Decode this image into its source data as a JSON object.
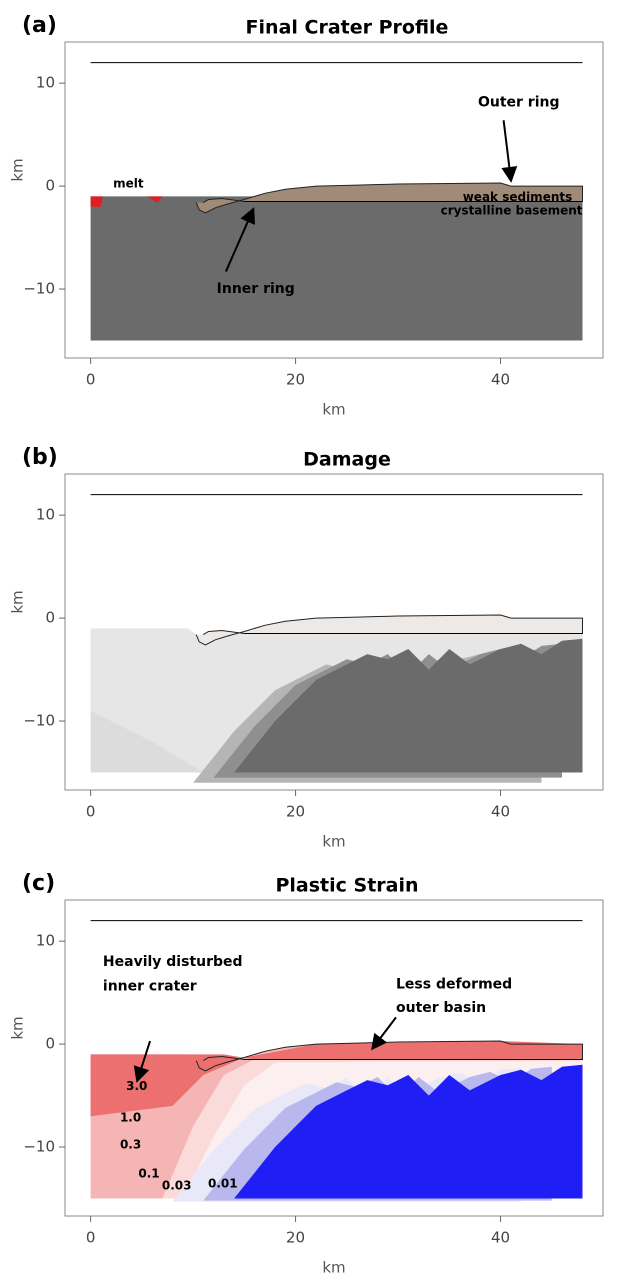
{
  "chart_data": [
    {
      "type": "field",
      "panel_label": "(a)",
      "title": "Final Crater Profile",
      "xlabel": "km",
      "ylabel": "km",
      "xlim": [
        -2.5,
        50
      ],
      "ylim": [
        -16.7,
        14
      ],
      "xticks": [
        0,
        20,
        40
      ],
      "yticks": [
        10,
        0,
        {
          "value": -10,
          "label": "−10"
        }
      ],
      "annotations": [
        "melt",
        "Outer ring",
        "weak sediments",
        "crystalline basement",
        "Inner ring"
      ]
    },
    {
      "type": "field",
      "panel_label": "(b)",
      "title": "Damage",
      "xlabel": "km",
      "ylabel": "km",
      "xlim": [
        -2.5,
        50
      ],
      "ylim": [
        -16.7,
        14
      ],
      "xticks": [
        0,
        20,
        40
      ],
      "yticks": [
        10,
        0,
        {
          "value": -10,
          "label": "−10"
        }
      ],
      "annotations": []
    },
    {
      "type": "field",
      "panel_label": "(c)",
      "title": "Plastic Strain",
      "xlabel": "km",
      "ylabel": "km",
      "xlim": [
        -2.5,
        50
      ],
      "ylim": [
        -16.7,
        14
      ],
      "xticks": [
        0,
        20,
        40
      ],
      "yticks": [
        10,
        0,
        {
          "value": -10,
          "label": "−10"
        }
      ],
      "annotations": [
        "Heavily disturbed",
        "inner crater",
        "Less deformed",
        "outer basin",
        "3.0",
        "1.0",
        "0.3",
        "0.1",
        "0.03",
        "0.01"
      ]
    }
  ]
}
